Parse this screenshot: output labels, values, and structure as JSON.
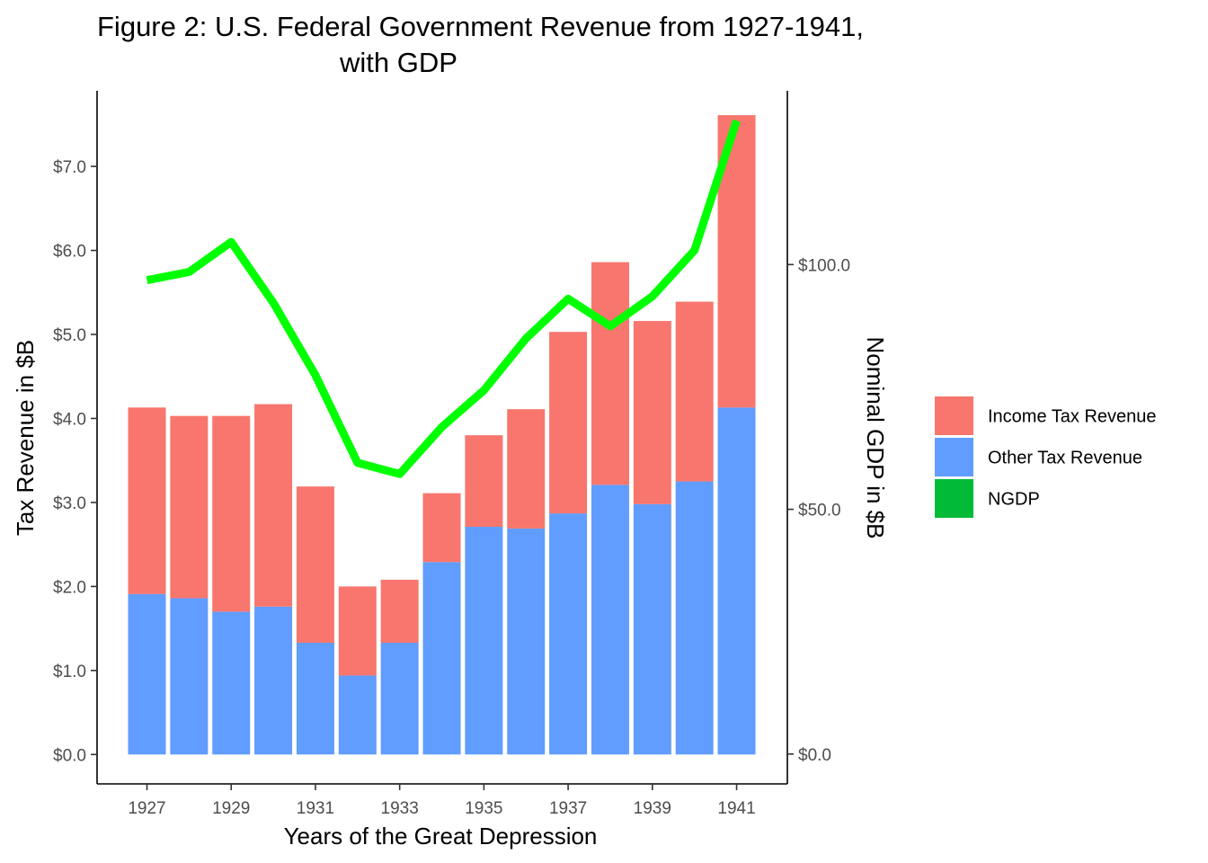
{
  "chart_data": {
    "type": "bar",
    "stacked": true,
    "title_line1": "Figure 2: U.S. Federal Government Revenue from 1927-1941,",
    "title_line2": "with GDP",
    "xlabel": "Years of the Great Depression",
    "ylabel": "Tax Revenue in $B",
    "y2label": "Nominal GDP in $B",
    "categories": [
      "1927",
      "1928",
      "1929",
      "1930",
      "1931",
      "1932",
      "1933",
      "1934",
      "1935",
      "1936",
      "1937",
      "1938",
      "1939",
      "1940",
      "1941"
    ],
    "x_tick_labels": [
      "1927",
      "1929",
      "1931",
      "1933",
      "1935",
      "1937",
      "1939",
      "1941"
    ],
    "ylim": [
      -0.35,
      7.9
    ],
    "y_ticks": [
      0,
      1,
      2,
      3,
      4,
      5,
      6,
      7
    ],
    "y_tick_labels": [
      "$0.0",
      "$1.0",
      "$2.0",
      "$3.0",
      "$4.0",
      "$5.0",
      "$6.0",
      "$7.0"
    ],
    "y2lim": [
      -6.1,
      135.5
    ],
    "y2_ticks": [
      0,
      50,
      100
    ],
    "y2_tick_labels": [
      "$0.0",
      "$50.0",
      "$100.0"
    ],
    "series": [
      {
        "name": "Other Tax Revenue",
        "color": "#619CFF",
        "axis": "left",
        "values": [
          1.91,
          1.86,
          1.7,
          1.76,
          1.33,
          0.94,
          1.33,
          2.29,
          2.71,
          2.69,
          2.87,
          3.21,
          2.98,
          3.25,
          4.13
        ]
      },
      {
        "name": "Income Tax Revenue",
        "color": "#F8766D",
        "axis": "left",
        "values": [
          2.22,
          2.17,
          2.33,
          2.41,
          1.86,
          1.06,
          0.75,
          0.82,
          1.09,
          1.42,
          2.16,
          2.65,
          2.18,
          2.14,
          3.48
        ]
      },
      {
        "name": "NGDP",
        "color": "#00FF00",
        "axis": "right",
        "type": "line",
        "values": [
          96.8,
          98.5,
          104.6,
          92.2,
          77.4,
          59.5,
          57.2,
          66.8,
          74.3,
          84.9,
          93.0,
          87.4,
          93.5,
          102.9,
          129.4
        ]
      }
    ],
    "legend": {
      "position": "right",
      "entries": [
        {
          "label": "Income Tax Revenue",
          "color": "#F8766D"
        },
        {
          "label": "Other Tax Revenue",
          "color": "#619CFF"
        },
        {
          "label": "NGDP",
          "color": "#00BA38"
        }
      ]
    },
    "grid": false
  }
}
